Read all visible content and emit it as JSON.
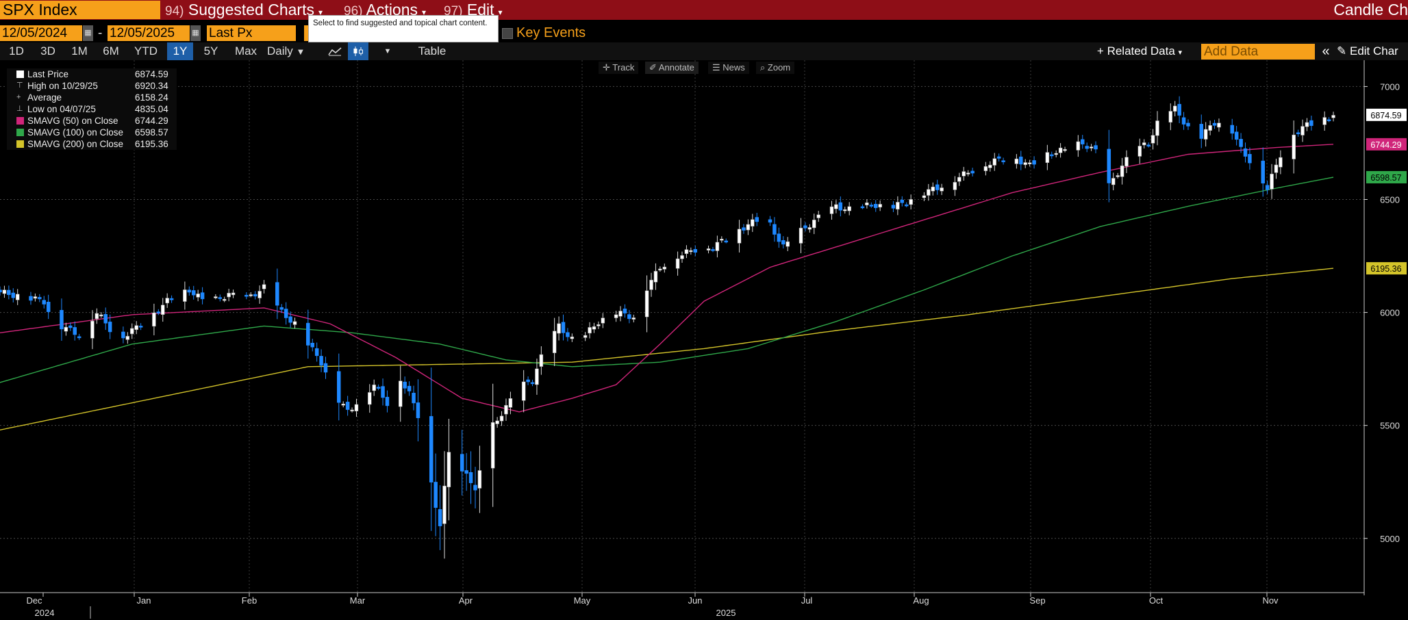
{
  "topbar": {
    "security": "SPX Index",
    "menus": [
      {
        "num": "94)",
        "label": "Suggested Charts"
      },
      {
        "num": "96)",
        "label": "Actions"
      },
      {
        "num": "97)",
        "label": "Edit"
      }
    ],
    "title_right": "Candle Ch",
    "tooltip": "Select to find suggested and topical chart content."
  },
  "toolbar2": {
    "start_date": "12/05/2024",
    "date_sep": "-",
    "end_date": "12/05/2025",
    "field": "Last Px",
    "key_events": "Key Events"
  },
  "toolbar3": {
    "ranges": [
      "1D",
      "3D",
      "1M",
      "6M",
      "YTD",
      "1Y",
      "5Y",
      "Max"
    ],
    "selected_range": "1Y",
    "frequency": "Daily",
    "table": "Table",
    "related_data": "Related Data",
    "add_data_placeholder": "Add Data",
    "edit_chart": "Edit Char"
  },
  "chart_tools": [
    "Track",
    "Annotate",
    "News",
    "Zoom"
  ],
  "legend": [
    {
      "name": "Last Price",
      "value": "6874.59",
      "glyph": "square-white"
    },
    {
      "name": "High on 10/29/25",
      "value": "6920.34",
      "glyph": "high-marker"
    },
    {
      "name": "Average",
      "value": "6158.24",
      "glyph": "average-marker"
    },
    {
      "name": "Low on 04/07/25",
      "value": "4835.04",
      "glyph": "low-marker"
    },
    {
      "name": "SMAVG (50)  on Close",
      "value": "6744.29",
      "glyph": "square-magenta"
    },
    {
      "name": "SMAVG (100)  on Close",
      "value": "6598.57",
      "glyph": "square-green"
    },
    {
      "name": "SMAVG (200)  on Close",
      "value": "6195.36",
      "glyph": "square-yellow"
    }
  ],
  "colors": {
    "bloomberg_red": "#8e0e17",
    "bloomberg_orange": "#f6a01a",
    "candle_up": "#ffffff",
    "candle_down": "#1e88ff",
    "sma50": "#d0257a",
    "sma100": "#2fa84a",
    "sma200": "#d4c42a",
    "last_price_label": "#ffffff"
  },
  "chart_data": {
    "type": "candlestick",
    "y_ticks": [
      "5000",
      "5500",
      "6000",
      "6500",
      "7000"
    ],
    "ylim": [
      4760,
      7080
    ],
    "x_month_labels": [
      "Dec",
      "Jan",
      "Feb",
      "Mar",
      "Apr",
      "May",
      "Jun",
      "Jul",
      "Aug",
      "Sep",
      "Oct",
      "Nov"
    ],
    "x_year_labels": [
      "2024",
      "2025"
    ],
    "price_labels": [
      {
        "series": "Last Price",
        "value": 6874.59,
        "text": "6874.59"
      },
      {
        "series": "SMAVG (50)",
        "value": 6744.29,
        "text": "6744.29"
      },
      {
        "series": "SMAVG (100)",
        "value": 6598.57,
        "text": "6598.57"
      },
      {
        "series": "SMAVG (200)",
        "value": 6195.36,
        "text": "6195.36"
      }
    ],
    "close_path": [
      [
        0,
        6090
      ],
      [
        10,
        6050
      ],
      [
        12,
        5960
      ],
      [
        18,
        5900
      ],
      [
        22,
        6000
      ],
      [
        27,
        5880
      ],
      [
        33,
        5960
      ],
      [
        38,
        6050
      ],
      [
        43,
        6100
      ],
      [
        47,
        6040
      ],
      [
        52,
        6080
      ],
      [
        56,
        6060
      ],
      [
        60,
        6110
      ],
      [
        64,
        6000
      ],
      [
        67,
        5950
      ],
      [
        70,
        5860
      ],
      [
        73,
        5780
      ],
      [
        76,
        5640
      ],
      [
        79,
        5560
      ],
      [
        82,
        5620
      ],
      [
        85,
        5680
      ],
      [
        88,
        5600
      ],
      [
        90,
        5740
      ],
      [
        93,
        5640
      ],
      [
        96,
        5500
      ],
      [
        98,
        5250
      ],
      [
        100,
        5050
      ],
      [
        102,
        5390
      ],
      [
        104,
        5280
      ],
      [
        106,
        5300
      ],
      [
        108,
        5200
      ],
      [
        110,
        5400
      ],
      [
        112,
        5500
      ],
      [
        115,
        5580
      ],
      [
        118,
        5670
      ],
      [
        121,
        5700
      ],
      [
        124,
        5850
      ],
      [
        127,
        5940
      ],
      [
        130,
        5880
      ],
      [
        133,
        5900
      ],
      [
        136,
        5960
      ],
      [
        140,
        6000
      ],
      [
        144,
        5980
      ],
      [
        146,
        6080
      ],
      [
        150,
        6200
      ],
      [
        154,
        6250
      ],
      [
        158,
        6280
      ],
      [
        162,
        6290
      ],
      [
        166,
        6340
      ],
      [
        170,
        6390
      ],
      [
        174,
        6420
      ],
      [
        178,
        6290
      ],
      [
        182,
        6360
      ],
      [
        186,
        6420
      ],
      [
        190,
        6470
      ],
      [
        194,
        6450
      ],
      [
        198,
        6480
      ],
      [
        202,
        6460
      ],
      [
        206,
        6490
      ],
      [
        210,
        6530
      ],
      [
        214,
        6560
      ],
      [
        218,
        6600
      ],
      [
        222,
        6640
      ],
      [
        226,
        6670
      ],
      [
        230,
        6690
      ],
      [
        234,
        6650
      ],
      [
        238,
        6700
      ],
      [
        242,
        6720
      ],
      [
        246,
        6750
      ],
      [
        250,
        6700
      ],
      [
        252,
        6560
      ],
      [
        255,
        6650
      ],
      [
        258,
        6720
      ],
      [
        261,
        6750
      ],
      [
        264,
        6880
      ],
      [
        267,
        6900
      ],
      [
        270,
        6820
      ],
      [
        273,
        6780
      ],
      [
        276,
        6840
      ],
      [
        279,
        6850
      ],
      [
        282,
        6720
      ],
      [
        285,
        6650
      ],
      [
        288,
        6550
      ],
      [
        291,
        6700
      ],
      [
        294,
        6790
      ],
      [
        297,
        6830
      ],
      [
        300,
        6850
      ],
      [
        303,
        6874.59
      ]
    ],
    "sma50": [
      [
        0,
        5910
      ],
      [
        30,
        5990
      ],
      [
        60,
        6020
      ],
      [
        75,
        5950
      ],
      [
        90,
        5800
      ],
      [
        105,
        5620
      ],
      [
        118,
        5560
      ],
      [
        130,
        5620
      ],
      [
        140,
        5680
      ],
      [
        150,
        5860
      ],
      [
        160,
        6050
      ],
      [
        175,
        6200
      ],
      [
        190,
        6290
      ],
      [
        210,
        6410
      ],
      [
        230,
        6530
      ],
      [
        250,
        6620
      ],
      [
        270,
        6700
      ],
      [
        290,
        6730
      ],
      [
        303,
        6744.29
      ]
    ],
    "sma100": [
      [
        0,
        5690
      ],
      [
        30,
        5860
      ],
      [
        60,
        5940
      ],
      [
        80,
        5910
      ],
      [
        100,
        5860
      ],
      [
        115,
        5790
      ],
      [
        130,
        5760
      ],
      [
        150,
        5780
      ],
      [
        170,
        5840
      ],
      [
        190,
        5960
      ],
      [
        210,
        6100
      ],
      [
        230,
        6250
      ],
      [
        250,
        6380
      ],
      [
        270,
        6470
      ],
      [
        290,
        6550
      ],
      [
        303,
        6598.57
      ]
    ],
    "sma200": [
      [
        0,
        5480
      ],
      [
        40,
        5640
      ],
      [
        70,
        5760
      ],
      [
        100,
        5770
      ],
      [
        130,
        5780
      ],
      [
        160,
        5840
      ],
      [
        190,
        5920
      ],
      [
        220,
        5990
      ],
      [
        250,
        6070
      ],
      [
        280,
        6150
      ],
      [
        303,
        6195.36
      ]
    ],
    "low_marker": {
      "date": "04/07/25",
      "value": 4835.04
    },
    "high_marker": {
      "date": "10/29/25",
      "value": 6920.34
    }
  }
}
